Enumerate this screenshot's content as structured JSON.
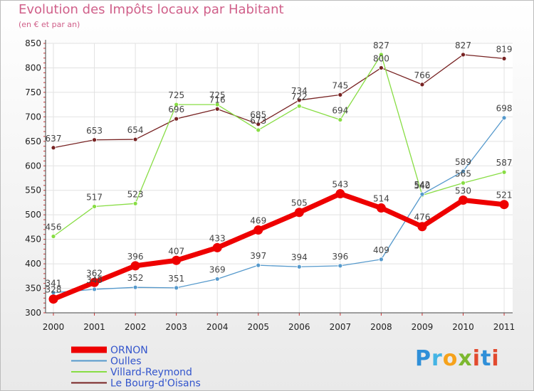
{
  "header": {
    "title": "Evolution des Impôts locaux par Habitant",
    "subtitle": "(en € et par an)"
  },
  "logo": {
    "text": "Proxiti"
  },
  "chart_data": {
    "type": "line",
    "title": "Evolution des Impôts locaux par Habitant",
    "subtitle": "(en € et par an)",
    "xlabel": "",
    "ylabel": "",
    "categories": [
      "2000",
      "2001",
      "2002",
      "2003",
      "2004",
      "2005",
      "2006",
      "2007",
      "2008",
      "2009",
      "2010",
      "2011"
    ],
    "ylim": [
      300,
      850
    ],
    "yticks": [
      300,
      350,
      400,
      450,
      500,
      550,
      600,
      650,
      700,
      750,
      800,
      850
    ],
    "grid": true,
    "legend_position": "bottom-left",
    "series": [
      {
        "name": "ORNON",
        "color": "#ee0000",
        "values": [
          328,
          362,
          396,
          407,
          433,
          469,
          505,
          543,
          514,
          476,
          530,
          521
        ]
      },
      {
        "name": "Oulles",
        "color": "#5599cc",
        "values": [
          341,
          348,
          352,
          351,
          369,
          397,
          394,
          396,
          409,
          542,
          589,
          698
        ]
      },
      {
        "name": "Villard-Reymond",
        "color": "#88dd44",
        "values": [
          456,
          517,
          523,
          725,
          725,
          673,
          722,
          694,
          827,
          540,
          565,
          587
        ]
      },
      {
        "name": "Le Bourg-d'Oisans",
        "color": "#772222",
        "values": [
          637,
          653,
          654,
          696,
          716,
          685,
          734,
          745,
          800,
          766,
          827,
          819
        ]
      }
    ]
  }
}
